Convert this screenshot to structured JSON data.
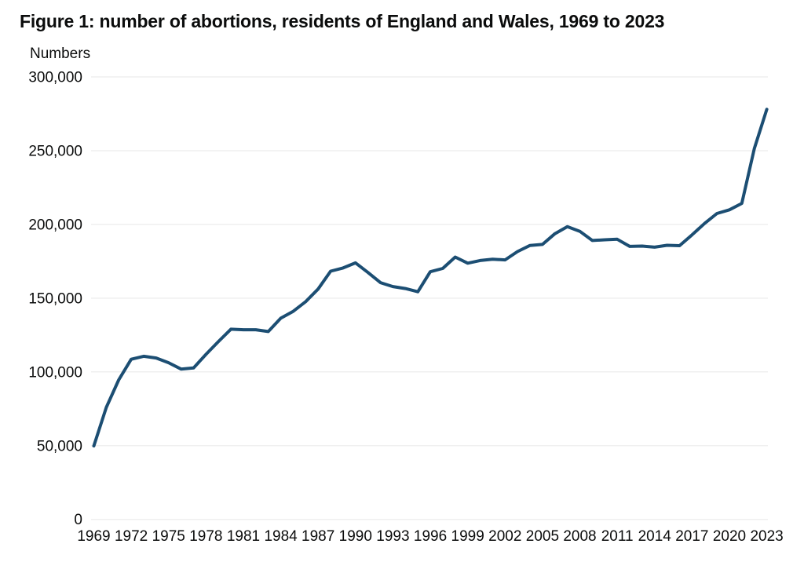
{
  "figure": {
    "title": "Figure 1: number of abortions, residents of England and Wales, 1969 to 2023",
    "y_unit_label": "Numbers"
  },
  "colors": {
    "line": "#1c4e73",
    "grid": "#efefef",
    "text": "#0b0c0c",
    "background": "#ffffff"
  },
  "chart_data": {
    "type": "line",
    "title": "Figure 1: number of abortions, residents of England and Wales, 1969 to 2023",
    "xlabel": "",
    "ylabel": "Numbers",
    "ylim": [
      0,
      300000
    ],
    "xlim": [
      1969,
      2023
    ],
    "grid": "horizontal",
    "legend_position": "none",
    "x": [
      1969,
      1970,
      1971,
      1972,
      1973,
      1974,
      1975,
      1976,
      1977,
      1978,
      1979,
      1980,
      1981,
      1982,
      1983,
      1984,
      1985,
      1986,
      1987,
      1988,
      1989,
      1990,
      1991,
      1992,
      1993,
      1994,
      1995,
      1996,
      1997,
      1998,
      1999,
      2000,
      2001,
      2002,
      2003,
      2004,
      2005,
      2006,
      2007,
      2008,
      2009,
      2010,
      2011,
      2012,
      2013,
      2014,
      2015,
      2016,
      2017,
      2018,
      2019,
      2020,
      2021,
      2022,
      2023
    ],
    "values": [
      49829,
      75962,
      94570,
      108565,
      110568,
      109445,
      106224,
      101912,
      102677,
      111851,
      120611,
      128927,
      128581,
      128553,
      127375,
      136388,
      141101,
      147619,
      156191,
      168298,
      170463,
      173900,
      167376,
      160501,
      157846,
      156539,
      154315,
      167916,
      170145,
      177871,
      173701,
      175542,
      176364,
      175932,
      181582,
      185713,
      186416,
      193737,
      198499,
      195296,
      189100,
      189574,
      189931,
      185122,
      185331,
      184571,
      185824,
      185596,
      192900,
      200608,
      207384,
      209917,
      214256,
      251377,
      278000
    ],
    "y_ticks": [
      {
        "value": 0,
        "label": "0"
      },
      {
        "value": 50000,
        "label": "50,000"
      },
      {
        "value": 100000,
        "label": "100,000"
      },
      {
        "value": 150000,
        "label": "150,000"
      },
      {
        "value": 200000,
        "label": "200,000"
      },
      {
        "value": 250000,
        "label": "250,000"
      },
      {
        "value": 300000,
        "label": "300,000"
      }
    ],
    "x_tick_labels": [
      "1969",
      "1972",
      "1975",
      "1978",
      "1981",
      "1984",
      "1987",
      "1990",
      "1993",
      "1996",
      "1999",
      "2002",
      "2005",
      "2008",
      "2011",
      "2014",
      "2017",
      "2020",
      "2023"
    ]
  }
}
